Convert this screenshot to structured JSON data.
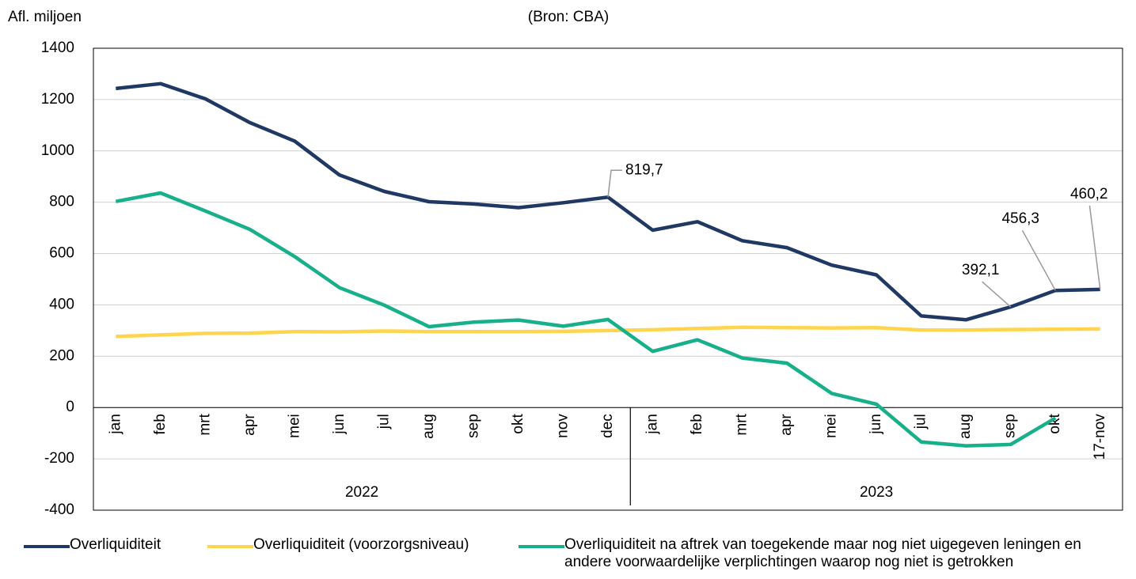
{
  "chart_data": {
    "type": "line",
    "subtitle": "(Bron: CBA)",
    "y_label": "Afl. miljoen",
    "categories": [
      "jan",
      "feb",
      "mrt",
      "apr",
      "mei",
      "jun",
      "jul",
      "aug",
      "sep",
      "okt",
      "nov",
      "dec",
      "jan",
      "feb",
      "mrt",
      "apr",
      "mei",
      "jun",
      "jul",
      "aug",
      "sep",
      "okt",
      "17-nov"
    ],
    "groups": [
      "2022",
      "2023"
    ],
    "series": [
      {
        "name": "Overliquiditeit",
        "color": "#203864",
        "values": [
          1243,
          1262,
          1203,
          1110,
          1038,
          906,
          842,
          802,
          793,
          779,
          798,
          819.7,
          691,
          724,
          650,
          623,
          555,
          517,
          357,
          342,
          392.1,
          456.3,
          460.2
        ],
        "value_labels": [
          null,
          null,
          null,
          null,
          null,
          null,
          null,
          null,
          null,
          null,
          null,
          "819,7",
          null,
          null,
          null,
          null,
          null,
          null,
          null,
          null,
          "392,1",
          "456,3",
          "460,2"
        ]
      },
      {
        "name": "Overliquiditeit (voorzorgsniveau)",
        "color": "#ffd54f",
        "values": [
          277,
          283,
          289,
          290,
          296,
          295,
          298,
          296,
          296,
          296,
          297,
          300,
          303,
          308,
          313,
          311,
          310,
          311,
          302,
          302,
          304,
          305,
          306
        ]
      },
      {
        "name": "Overliquiditeit na aftrek van toegekende maar nog niet uigegeven leningen en andere voorwaardelijke verplichtingen waarop nog niet is getrokken",
        "color": "#17b08a",
        "values": [
          803,
          836,
          766,
          694,
          588,
          467,
          399,
          315,
          333,
          341,
          317,
          343,
          219,
          264,
          193,
          173,
          55,
          13,
          -134,
          -149,
          -144,
          -41,
          null
        ]
      }
    ],
    "ylim": [
      -400,
      1400
    ],
    "yticks": [
      -400,
      -200,
      0,
      200,
      400,
      600,
      800,
      1000,
      1200,
      1400
    ],
    "grid": true
  }
}
